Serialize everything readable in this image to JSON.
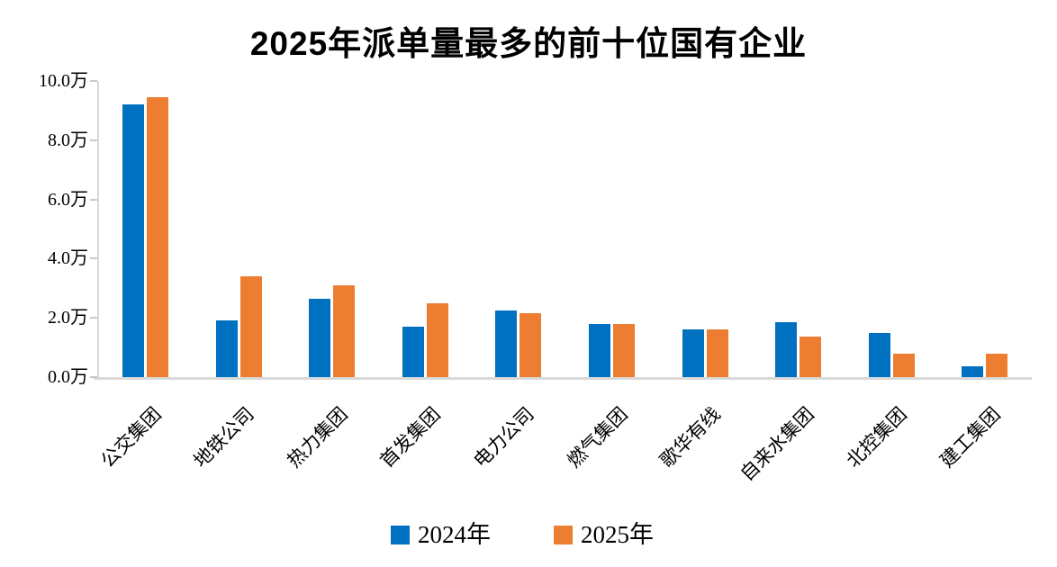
{
  "title": "2025年派单量最多的前十位国有企业",
  "colors": {
    "series_2024": "#0070C0",
    "series_2025": "#ED7D31",
    "axis": "#D9D9D9",
    "tick": "#C9C9C9",
    "text": "#000000",
    "background": "#FFFFFF"
  },
  "y_axis": {
    "unit": "万",
    "tick_labels": [
      "0.0万",
      "2.0万",
      "4.0万",
      "6.0万",
      "8.0万",
      "10.0万"
    ]
  },
  "legend": {
    "items": [
      {
        "label": "2024年",
        "color": "#0070C0"
      },
      {
        "label": "2025年",
        "color": "#ED7D31"
      }
    ]
  },
  "chart_data": {
    "type": "bar",
    "title": "2025年派单量最多的前十位国有企业",
    "categories": [
      "公交集团",
      "地铁公司",
      "热力集团",
      "首发集团",
      "电力公司",
      "燃气集团",
      "歌华有线",
      "自来水集团",
      "北控集团",
      "建工集团"
    ],
    "series": [
      {
        "name": "2024年",
        "color": "#0070C0",
        "values": [
          9.2,
          1.9,
          2.65,
          1.7,
          2.25,
          1.8,
          1.6,
          1.85,
          1.5,
          0.35
        ]
      },
      {
        "name": "2025年",
        "color": "#ED7D31",
        "values": [
          9.45,
          3.4,
          3.1,
          2.5,
          2.15,
          1.78,
          1.62,
          1.38,
          0.8,
          0.78
        ]
      }
    ],
    "unit": "万",
    "xlabel": "",
    "ylabel": "",
    "ylim": [
      0,
      10
    ],
    "ytick_step": 2,
    "grid": false,
    "legend_position": "bottom",
    "x_label_rotation_deg": 45
  }
}
